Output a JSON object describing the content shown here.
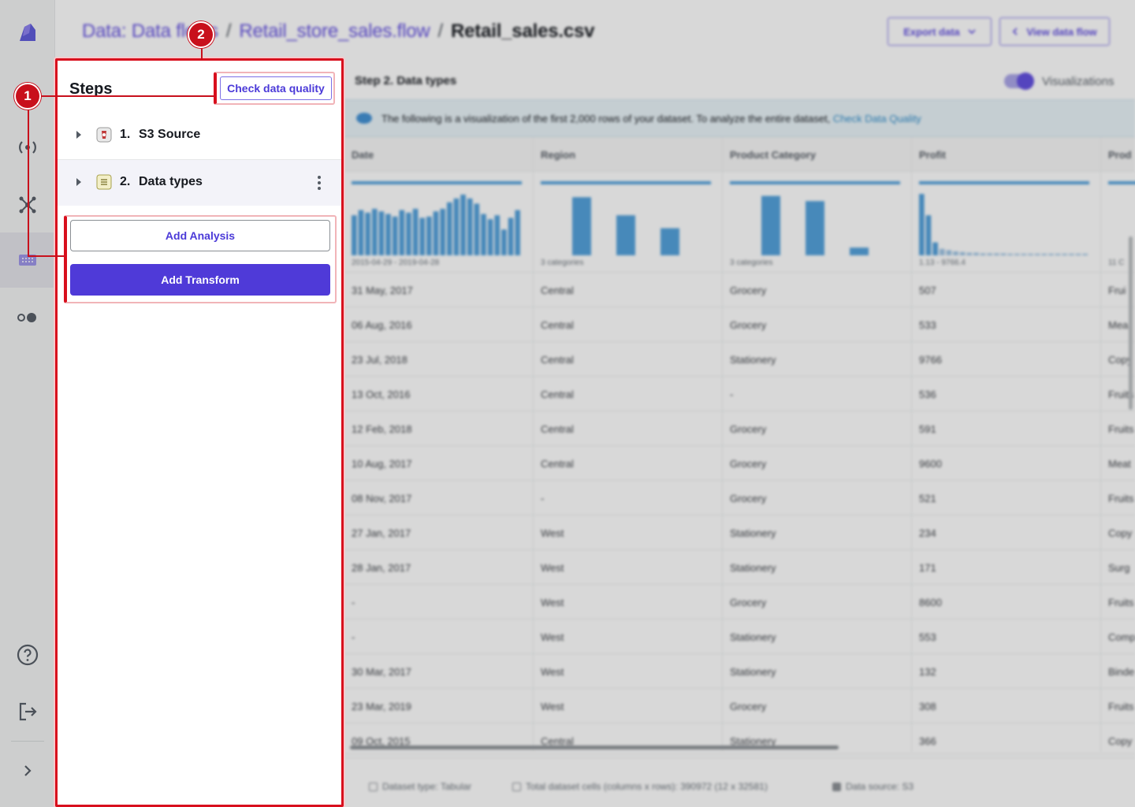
{
  "breadcrumb": {
    "items": [
      "Data: Data flows",
      "Retail_store_sales.flow"
    ],
    "current": "Retail_sales.csv",
    "separator": "/"
  },
  "header_actions": {
    "export_label": "Export data",
    "view_flow_label": "View data flow"
  },
  "steps_panel": {
    "title": "Steps",
    "check_quality_label": "Check data quality",
    "steps": [
      {
        "number": "1.",
        "label": "S3 Source",
        "icon": "s3-bucket-icon"
      },
      {
        "number": "2.",
        "label": "Data types",
        "icon": "data-types-icon"
      }
    ],
    "add_analysis_label": "Add Analysis",
    "add_transform_label": "Add Transform"
  },
  "content": {
    "step_title": "Step 2. Data types",
    "visualizations_label": "Visualizations",
    "visualizations_on": true,
    "info_text": "The following is a visualization of the first 2,000 rows of your dataset. To analyze the entire dataset, ",
    "info_link": "Check Data Quality",
    "columns": [
      "Date",
      "Region",
      "Product Category",
      "Profit",
      "Prod"
    ],
    "viz_labels": [
      "2015-04-29 - 2019-04-28",
      "3 categories",
      "3 categories",
      "1.13 - 9766.4",
      "11 C"
    ],
    "viz": {
      "date_hist": [
        0.62,
        0.7,
        0.66,
        0.72,
        0.68,
        0.64,
        0.6,
        0.7,
        0.66,
        0.72,
        0.58,
        0.6,
        0.68,
        0.72,
        0.82,
        0.88,
        0.94,
        0.88,
        0.8,
        0.64,
        0.56,
        0.62,
        0.4,
        0.58,
        0.7
      ],
      "region_bars": [
        0.9,
        0.62,
        0.42
      ],
      "category_bars": [
        0.92,
        0.84,
        0.12
      ],
      "profit_hist": [
        0.95,
        0.62,
        0.2,
        0.1,
        0.08,
        0.06,
        0.05,
        0.04,
        0.04,
        0.03,
        0.03,
        0.03,
        0.03,
        0.02,
        0.02,
        0.02,
        0.02,
        0.02,
        0.02,
        0.02,
        0.02,
        0.02,
        0.02,
        0.02,
        0.02
      ],
      "prod_bars": [
        0.94
      ]
    },
    "rows": [
      [
        "31 May, 2017",
        "Central",
        "Grocery",
        "507",
        "Frui"
      ],
      [
        "06 Aug, 2016",
        "Central",
        "Grocery",
        "533",
        "Mea"
      ],
      [
        "23 Jul, 2018",
        "Central",
        "Stationery",
        "9766",
        "Copy"
      ],
      [
        "13 Oct, 2016",
        "Central",
        "-",
        "536",
        "Fruits"
      ],
      [
        "12 Feb, 2018",
        "Central",
        "Grocery",
        "591",
        "Fruits"
      ],
      [
        "10 Aug, 2017",
        "Central",
        "Grocery",
        "9600",
        "Meat"
      ],
      [
        "08 Nov, 2017",
        "-",
        "Grocery",
        "521",
        "Fruits"
      ],
      [
        "27 Jan, 2017",
        "West",
        "Stationery",
        "234",
        "Copy"
      ],
      [
        "28 Jan, 2017",
        "West",
        "Stationery",
        "171",
        "Surg"
      ],
      [
        "-",
        "West",
        "Grocery",
        "8600",
        "Fruits"
      ],
      [
        "-",
        "West",
        "Stationery",
        "553",
        "Comp"
      ],
      [
        "30 Mar, 2017",
        "West",
        "Stationery",
        "132",
        "Binde"
      ],
      [
        "23 Mar, 2019",
        "West",
        "Grocery",
        "308",
        "Fruits"
      ],
      [
        "09 Oct, 2015",
        "Central",
        "Stationery",
        "366",
        "Copy"
      ]
    ],
    "footer": {
      "dataset_type": "Dataset type: Tabular",
      "total_cells": "Total dataset cells (columns x rows): 390972 (12 x 32581)",
      "data_source": "Data source: S3"
    }
  },
  "callouts": [
    "1",
    "2"
  ],
  "colors": {
    "accent": "#4f3ad8",
    "highlight": "#d80f1d",
    "chart": "#4f9fdb"
  }
}
